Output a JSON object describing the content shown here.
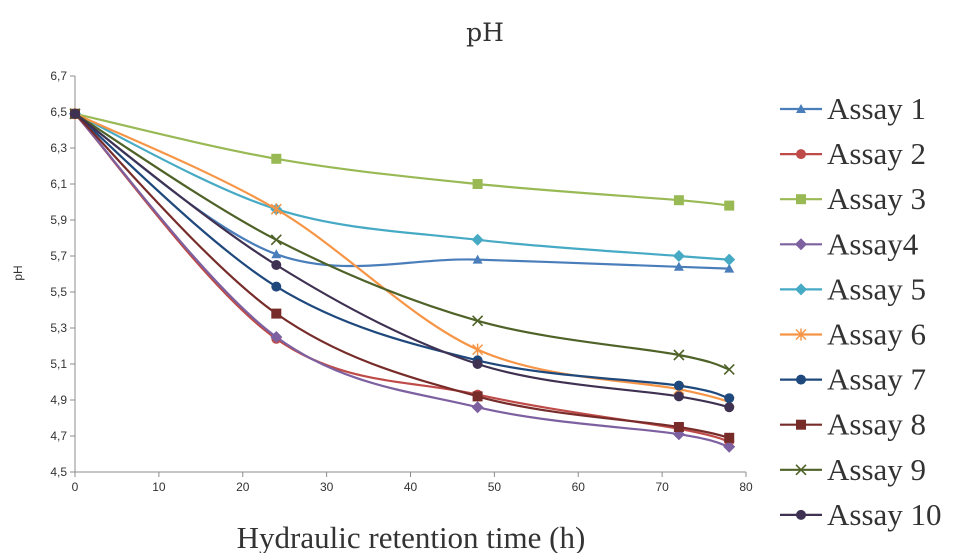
{
  "chart_data": {
    "type": "line",
    "title": "pH",
    "xlabel": "Hydraulic retention time (h)",
    "ylabel": "pH",
    "xlim": [
      0,
      80
    ],
    "ylim": [
      4.5,
      6.7
    ],
    "xticks": [
      "0",
      "10",
      "20",
      "30",
      "40",
      "50",
      "60",
      "70",
      "80"
    ],
    "yticks": [
      "4,5",
      "4,7",
      "4,9",
      "5,1",
      "5,3",
      "5,5",
      "5,7",
      "5,9",
      "6,1",
      "6,3",
      "6,5",
      "6,7"
    ],
    "grid": false,
    "legend_position": "right",
    "x": [
      0,
      24,
      48,
      72,
      78
    ],
    "series": [
      {
        "name": "Assay 1",
        "color": "#4a7ebb",
        "marker": "triangle",
        "values": [
          6.49,
          5.71,
          5.68,
          5.64,
          5.63
        ]
      },
      {
        "name": "Assay 2",
        "color": "#be4b48",
        "marker": "circle",
        "values": [
          6.49,
          5.24,
          4.93,
          4.74,
          4.67
        ]
      },
      {
        "name": "Assay 3",
        "color": "#98b954",
        "marker": "square",
        "values": [
          6.49,
          6.24,
          6.1,
          6.01,
          5.98
        ]
      },
      {
        "name": "Assay4",
        "color": "#7d60a0",
        "marker": "diamond",
        "values": [
          6.49,
          5.25,
          4.86,
          4.71,
          4.64
        ]
      },
      {
        "name": "Assay 5",
        "color": "#46aac5",
        "marker": "diamond",
        "values": [
          6.49,
          5.96,
          5.79,
          5.7,
          5.68
        ]
      },
      {
        "name": "Assay 6",
        "color": "#f69546",
        "marker": "star",
        "values": [
          6.49,
          5.96,
          5.18,
          4.96,
          4.89
        ]
      },
      {
        "name": "Assay 7",
        "color": "#1f497d",
        "marker": "circle",
        "values": [
          6.49,
          5.53,
          5.12,
          4.98,
          4.91
        ]
      },
      {
        "name": "Assay 8",
        "color": "#772c2a",
        "marker": "square",
        "values": [
          6.49,
          5.38,
          4.92,
          4.75,
          4.69
        ]
      },
      {
        "name": "Assay 9",
        "color": "#4f6228",
        "marker": "x",
        "values": [
          6.49,
          5.79,
          5.34,
          5.15,
          5.07
        ]
      },
      {
        "name": "Assay 10",
        "color": "#3f3151",
        "marker": "circle",
        "values": [
          6.49,
          5.65,
          5.1,
          4.92,
          4.86
        ]
      }
    ]
  }
}
